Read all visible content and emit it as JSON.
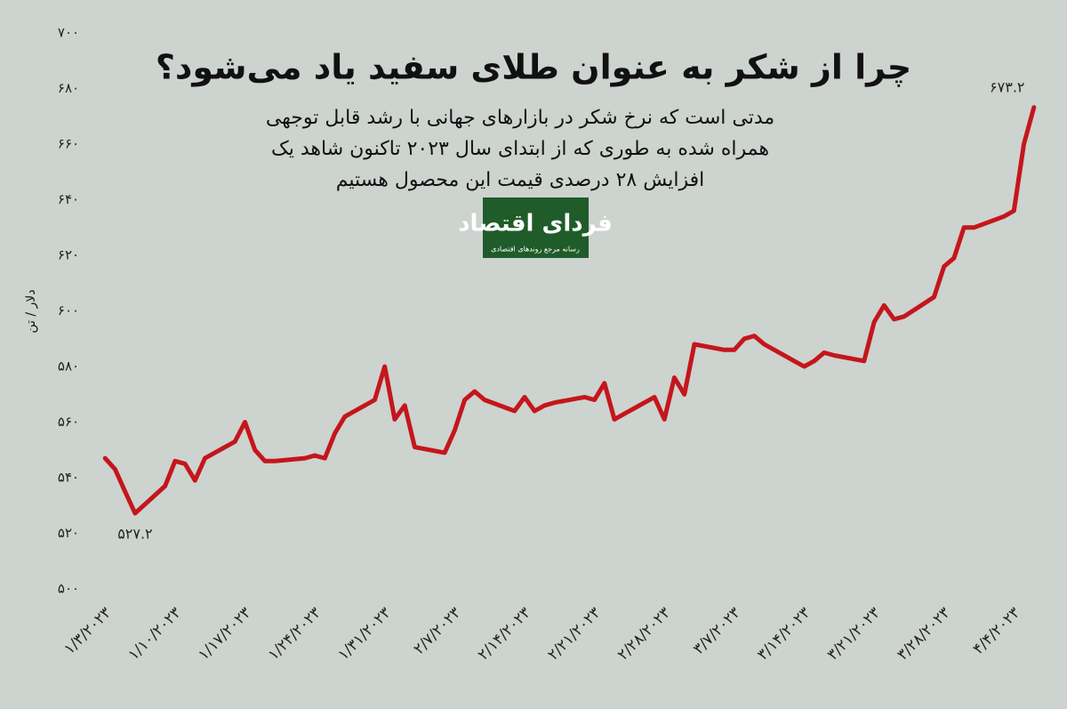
{
  "chart_data": {
    "type": "line",
    "title": "چرا از شکر به عنوان طلای سفید یاد می‌شود؟",
    "subtitle": [
      "مدتی است که نرخ شکر در بازارهای جهانی با رشد قابل توجهی",
      "همراه شده به طوری که از ابتدای سال ۲۰۲۳ تاکنون شاهد یک",
      "افزایش ۲۸ درصدی قیمت این محصول هستیم"
    ],
    "y_label": "دلار / تن",
    "color": "#c4161c",
    "x": [
      "2023-01-03",
      "2023-01-04",
      "2023-01-05",
      "2023-01-06",
      "2023-01-09",
      "2023-01-10",
      "2023-01-11",
      "2023-01-12",
      "2023-01-13",
      "2023-01-16",
      "2023-01-17",
      "2023-01-18",
      "2023-01-19",
      "2023-01-20",
      "2023-01-23",
      "2023-01-24",
      "2023-01-25",
      "2023-01-26",
      "2023-01-27",
      "2023-01-30",
      "2023-01-31",
      "2023-02-01",
      "2023-02-02",
      "2023-02-03",
      "2023-02-06",
      "2023-02-07",
      "2023-02-08",
      "2023-02-09",
      "2023-02-10",
      "2023-02-13",
      "2023-02-14",
      "2023-02-15",
      "2023-02-16",
      "2023-02-17",
      "2023-02-20",
      "2023-02-21",
      "2023-02-22",
      "2023-02-23",
      "2023-02-24",
      "2023-02-27",
      "2023-02-28",
      "2023-03-01",
      "2023-03-02",
      "2023-03-03",
      "2023-03-06",
      "2023-03-07",
      "2023-03-08",
      "2023-03-09",
      "2023-03-10",
      "2023-03-13",
      "2023-03-14",
      "2023-03-15",
      "2023-03-16",
      "2023-03-17",
      "2023-03-20",
      "2023-03-21",
      "2023-03-22",
      "2023-03-23",
      "2023-03-24",
      "2023-03-27",
      "2023-03-28",
      "2023-03-29",
      "2023-03-30",
      "2023-03-31",
      "2023-04-03",
      "2023-04-04",
      "2023-04-05",
      "2023-04-06"
    ],
    "values": [
      547,
      543,
      535,
      527.2,
      537,
      546,
      545,
      539,
      547,
      553,
      560,
      550,
      546,
      546,
      547,
      548,
      547,
      556,
      562,
      568,
      580,
      561,
      566,
      551,
      549,
      557,
      568,
      571,
      568,
      564,
      569,
      564,
      566,
      567,
      569,
      568,
      574,
      561,
      563,
      569,
      561,
      576,
      570,
      588,
      586,
      586,
      590,
      591,
      588,
      582,
      580,
      582,
      585,
      584,
      582,
      596,
      602,
      597,
      598,
      605,
      616,
      619,
      630,
      630,
      634,
      636,
      660,
      673.2
    ],
    "value_labels": [
      null,
      null,
      null,
      "۵۲۷.۲",
      null,
      null,
      null,
      null,
      null,
      null,
      null,
      null,
      null,
      null,
      null,
      null,
      null,
      null,
      null,
      null,
      null,
      null,
      null,
      null,
      null,
      null,
      null,
      null,
      null,
      null,
      null,
      null,
      null,
      null,
      null,
      null,
      null,
      null,
      null,
      null,
      null,
      null,
      null,
      null,
      null,
      null,
      null,
      null,
      null,
      null,
      null,
      null,
      null,
      null,
      null,
      null,
      null,
      null,
      null,
      null,
      null,
      null,
      null,
      null,
      null,
      null,
      null,
      "۶۷۳.۲"
    ],
    "xlim": [
      "2023-01-02",
      "2023-04-07"
    ],
    "xticks": [
      {
        "value": "2023-01-03",
        "label": "۱/۳/۲۰۲۳"
      },
      {
        "value": "2023-01-10",
        "label": "۱/۱۰/۲۰۲۳"
      },
      {
        "value": "2023-01-17",
        "label": "۱/۱۷/۲۰۲۳"
      },
      {
        "value": "2023-01-24",
        "label": "۱/۲۴/۲۰۲۳"
      },
      {
        "value": "2023-01-31",
        "label": "۱/۳۱/۲۰۲۳"
      },
      {
        "value": "2023-02-07",
        "label": "۲/۷/۲۰۲۳"
      },
      {
        "value": "2023-02-14",
        "label": "۲/۱۴/۲۰۲۳"
      },
      {
        "value": "2023-02-21",
        "label": "۲/۲۱/۲۰۲۳"
      },
      {
        "value": "2023-02-28",
        "label": "۲/۲۸/۲۰۲۳"
      },
      {
        "value": "2023-03-07",
        "label": "۳/۷/۲۰۲۳"
      },
      {
        "value": "2023-03-14",
        "label": "۳/۱۴/۲۰۲۳"
      },
      {
        "value": "2023-03-21",
        "label": "۳/۲۱/۲۰۲۳"
      },
      {
        "value": "2023-03-28",
        "label": "۳/۲۸/۲۰۲۳"
      },
      {
        "value": "2023-04-04",
        "label": "۴/۴/۲۰۲۳"
      }
    ],
    "ylim": [
      500,
      700
    ],
    "yticks": [
      {
        "value": 500,
        "label": "۵۰۰"
      },
      {
        "value": 520,
        "label": "۵۲۰"
      },
      {
        "value": 540,
        "label": "۵۴۰"
      },
      {
        "value": 560,
        "label": "۵۶۰"
      },
      {
        "value": 580,
        "label": "۵۸۰"
      },
      {
        "value": 600,
        "label": "۶۰۰"
      },
      {
        "value": 620,
        "label": "۶۲۰"
      },
      {
        "value": 640,
        "label": "۶۴۰"
      },
      {
        "value": 660,
        "label": "۶۶۰"
      },
      {
        "value": 680,
        "label": "۶۸۰"
      },
      {
        "value": 700,
        "label": "۷۰۰"
      }
    ],
    "grid": false
  },
  "logo": {
    "name": "فردای اقتصاد",
    "tagline": "رسانه مرجع روندهای اقتصادی"
  }
}
